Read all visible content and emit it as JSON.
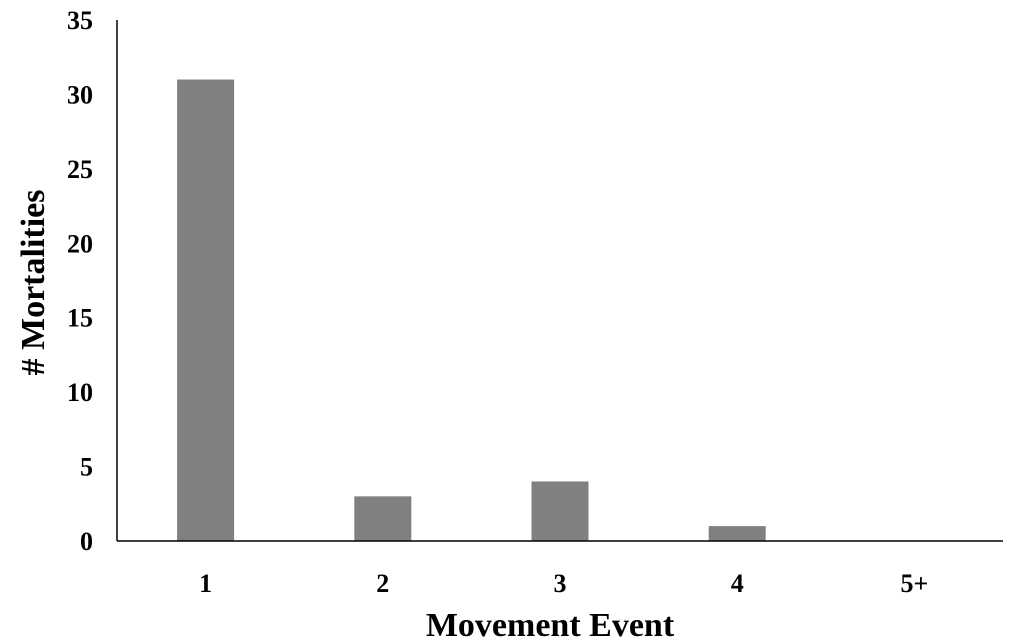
{
  "chart_data": {
    "type": "bar",
    "title": "",
    "xlabel": "Movement Event",
    "ylabel": "# Mortalities",
    "categories": [
      "1",
      "2",
      "3",
      "4",
      "5+"
    ],
    "values": [
      31,
      3,
      4,
      1,
      0
    ],
    "ylim": [
      0,
      35
    ],
    "yticks": [
      "0",
      "5",
      "10",
      "15",
      "20",
      "25",
      "30",
      "35"
    ],
    "grid": false,
    "legend": "none",
    "bar_color": "#808080",
    "axis_color": "#000000"
  }
}
